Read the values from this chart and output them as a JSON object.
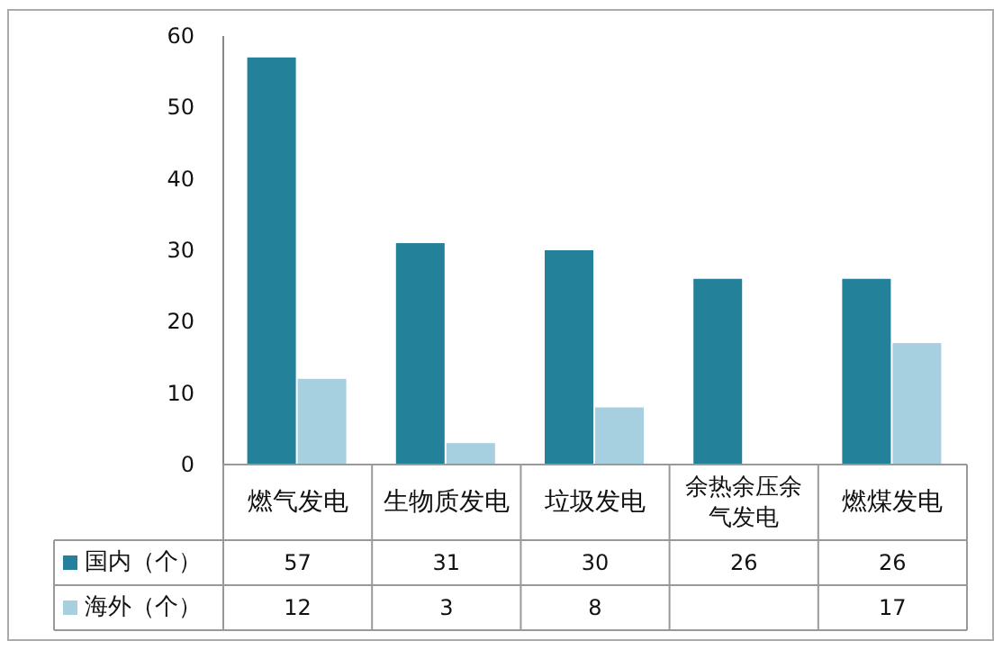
{
  "chart_data": {
    "type": "bar",
    "categories": [
      "燃气发电",
      "生物质发电",
      "垃圾发电",
      "余热余压余气发电",
      "燃煤发电"
    ],
    "series": [
      {
        "name": "国内（个）",
        "color": "#23819a",
        "values": [
          57,
          31,
          30,
          26,
          26
        ]
      },
      {
        "name": "海外（个）",
        "color": "#a6cfe0",
        "values": [
          12,
          3,
          8,
          null,
          17
        ]
      }
    ],
    "ylim": [
      0,
      60
    ],
    "yticks": [
      0,
      10,
      20,
      30,
      40,
      50,
      60
    ],
    "grid": false,
    "legend": "bottom left",
    "data_labels": true
  }
}
